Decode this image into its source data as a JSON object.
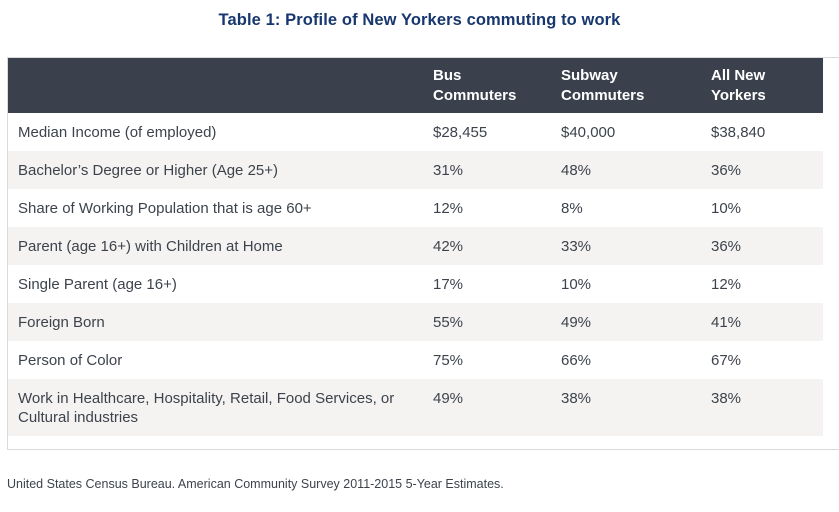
{
  "title": "Table 1: Profile of New Yorkers commuting to work",
  "table": {
    "header": [
      {
        "lines": [
          "",
          ""
        ]
      },
      {
        "lines": [
          "Bus",
          "Commuters"
        ]
      },
      {
        "lines": [
          "Subway",
          "Commuters"
        ]
      },
      {
        "lines": [
          "All New",
          "Yorkers"
        ]
      }
    ],
    "rows": [
      {
        "label": "Median Income (of employed)",
        "bus": "$28,455",
        "subway": "$40,000",
        "all_new_yorkers": "$38,840"
      },
      {
        "label": "Bachelor’s Degree or Higher (Age 25+)",
        "bus": "31%",
        "subway": "48%",
        "all_new_yorkers": "36%"
      },
      {
        "label": "Share of Working Population that is age 60+",
        "bus": "12%",
        "subway": "8%",
        "all_new_yorkers": "10%"
      },
      {
        "label": "Parent (age 16+) with Children at Home",
        "bus": "42%",
        "subway": "33%",
        "all_new_yorkers": "36%"
      },
      {
        "label": "Single Parent (age 16+)",
        "bus": "17%",
        "subway": "10%",
        "all_new_yorkers": "12%"
      },
      {
        "label": "Foreign Born",
        "bus": "55%",
        "subway": "49%",
        "all_new_yorkers": "41%"
      },
      {
        "label": "Person of Color",
        "bus": "75%",
        "subway": "66%",
        "all_new_yorkers": "67%"
      },
      {
        "label": "Work in Healthcare, Hospitality, Retail, Food Services, or Cultural industries",
        "bus": "49%",
        "subway": "38%",
        "all_new_yorkers": "38%"
      }
    ]
  },
  "source": "United States Census Bureau. American Community Survey 2011-2015 5-Year Estimates.",
  "colors": {
    "title_navy": "#17376e",
    "header_bg": "#3b414c",
    "header_text": "#ffffff",
    "body_text": "#3d434c",
    "zebra_row_bg": "#f4f3f1",
    "border": "#d9d9d9"
  }
}
